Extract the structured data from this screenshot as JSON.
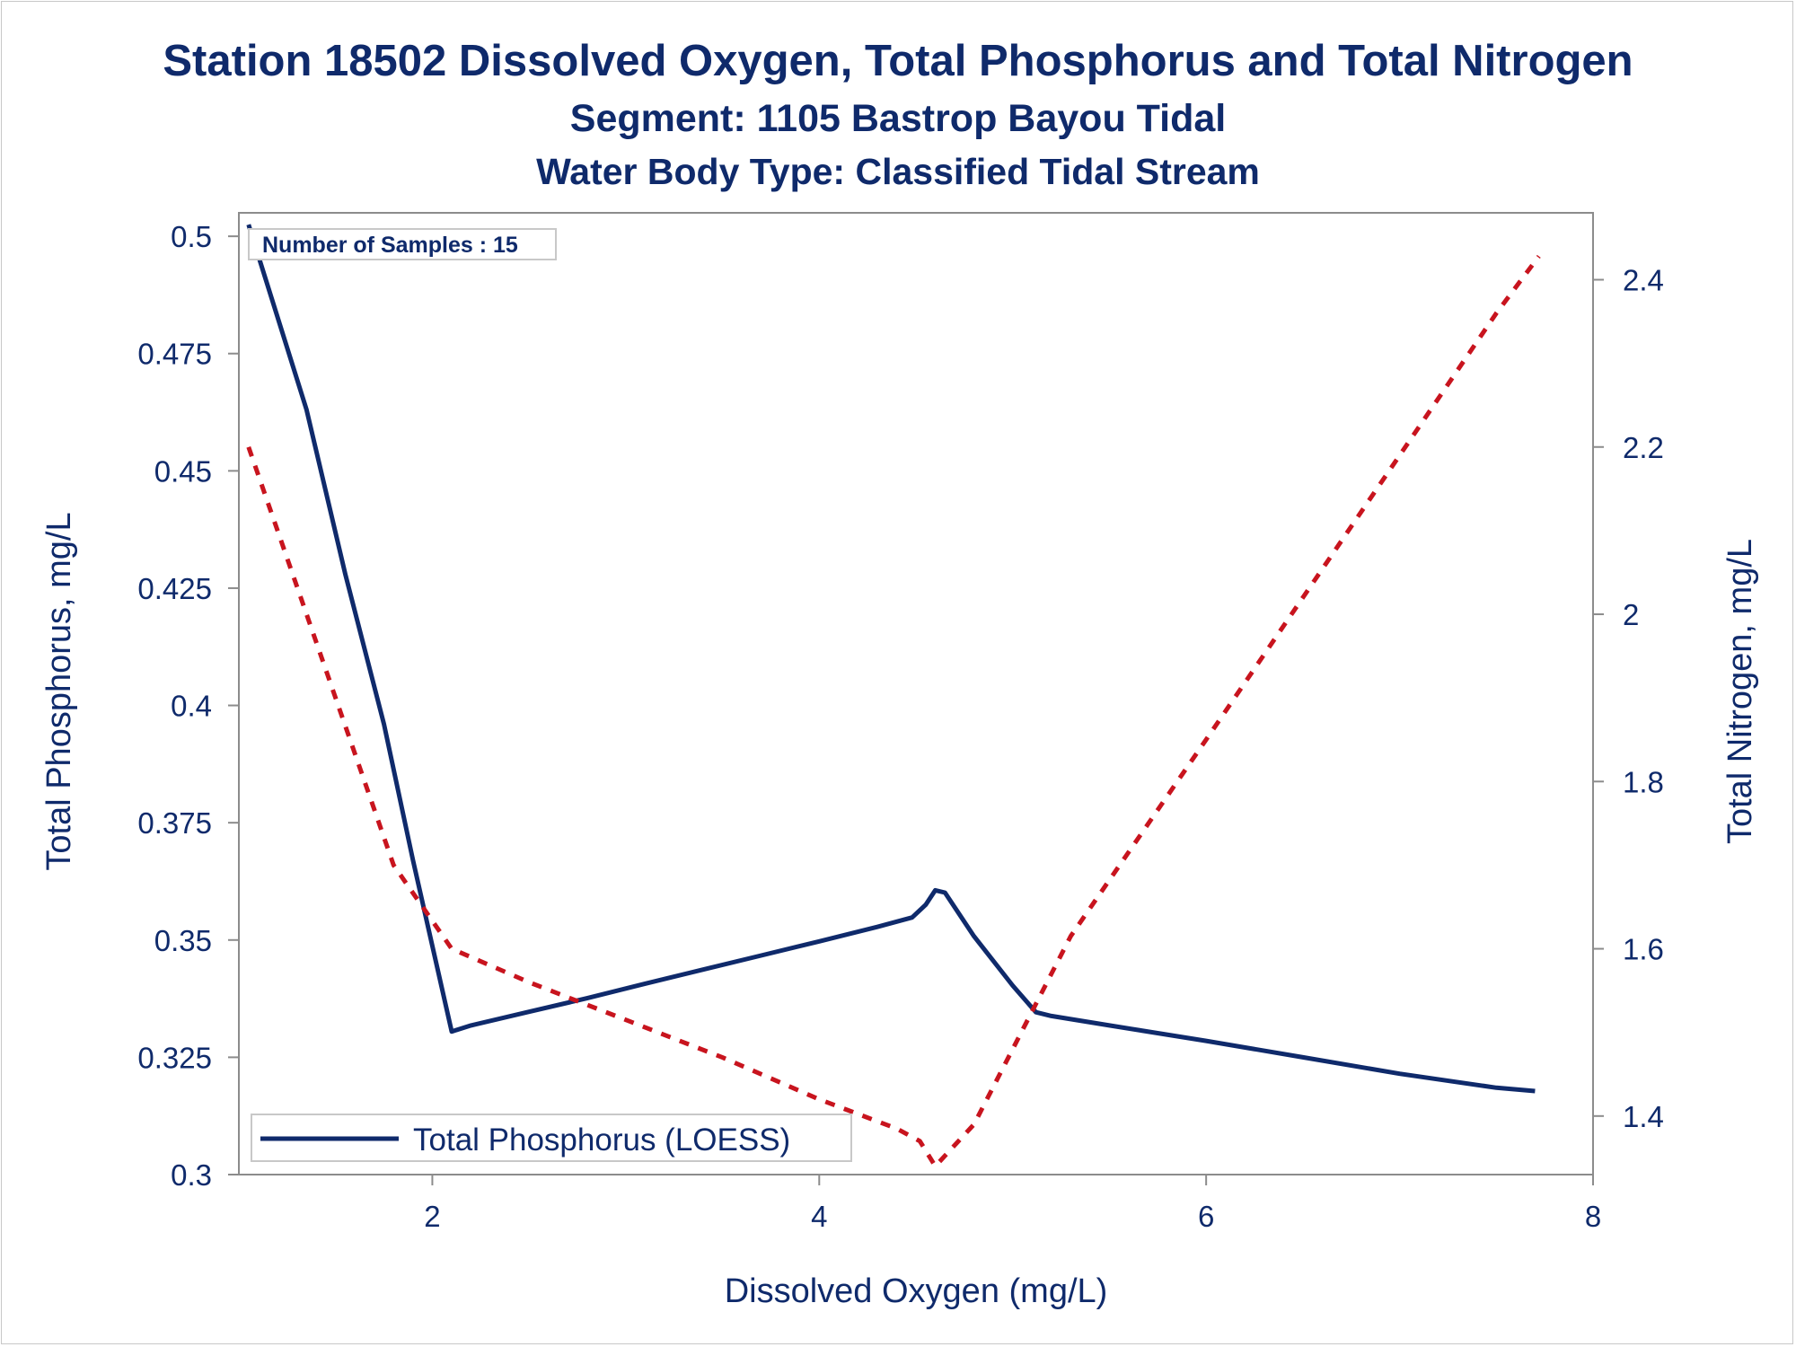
{
  "titles": {
    "title": "Station 18502  Dissolved Oxygen, Total Phosphorus and Total Nitrogen",
    "subtitle": "Segment: 1105  Bastrop Bayou Tidal",
    "subtitle2": "Water Body Type: Classified Tidal Stream"
  },
  "annotation": "Number of Samples : 15",
  "legend": {
    "entry": "Total Phosphorus (LOESS)"
  },
  "colors": {
    "text": "#0f2a6b",
    "phosphorus": "#0f2a6b",
    "nitrogen": "#c8141e",
    "axis": "#8c8c8c"
  },
  "chart_data": {
    "type": "line",
    "xlabel": "Dissolved Oxygen (mg/L)",
    "ylabel": "Total Phosphorus, mg/L",
    "y2label": "Total Nitrogen, mg/L",
    "xlim": [
      1,
      8
    ],
    "ylim": [
      0.3,
      0.505
    ],
    "y2lim": [
      1.33,
      2.48
    ],
    "xticks": [
      2,
      4,
      6,
      8
    ],
    "yticks": [
      0.3,
      0.325,
      0.35,
      0.375,
      0.4,
      0.425,
      0.45,
      0.475,
      0.5
    ],
    "y2ticks": [
      1.4,
      1.6,
      1.8,
      2,
      2.2,
      2.4
    ],
    "grid": false,
    "legend_position": "bottom-left",
    "series": [
      {
        "name": "Total Phosphorus (LOESS)",
        "axis": "left",
        "style": "solid",
        "points": [
          [
            1.05,
            0.5025
          ],
          [
            1.35,
            0.463
          ],
          [
            1.55,
            0.428
          ],
          [
            1.75,
            0.396
          ],
          [
            1.9,
            0.367
          ],
          [
            2.1,
            0.3305
          ],
          [
            2.2,
            0.3318
          ],
          [
            2.5,
            0.3347
          ],
          [
            2.8,
            0.3376
          ],
          [
            3.1,
            0.3407
          ],
          [
            3.4,
            0.3437
          ],
          [
            3.7,
            0.3467
          ],
          [
            4.0,
            0.3497
          ],
          [
            4.3,
            0.3528
          ],
          [
            4.48,
            0.3548
          ],
          [
            4.55,
            0.3575
          ],
          [
            4.6,
            0.3606
          ],
          [
            4.65,
            0.3601
          ],
          [
            4.8,
            0.3508
          ],
          [
            5.0,
            0.3403
          ],
          [
            5.12,
            0.3346
          ],
          [
            5.2,
            0.3338
          ],
          [
            5.5,
            0.3318
          ],
          [
            6.0,
            0.3285
          ],
          [
            6.5,
            0.325
          ],
          [
            7.0,
            0.3215
          ],
          [
            7.5,
            0.3185
          ],
          [
            7.7,
            0.3178
          ]
        ]
      },
      {
        "name": "",
        "axis": "right",
        "style": "dashed",
        "points": [
          [
            1.05,
            2.2
          ],
          [
            1.5,
            1.9
          ],
          [
            1.8,
            1.7
          ],
          [
            2.1,
            1.6
          ],
          [
            2.5,
            1.56
          ],
          [
            3.0,
            1.515
          ],
          [
            3.5,
            1.47
          ],
          [
            4.0,
            1.42
          ],
          [
            4.4,
            1.385
          ],
          [
            4.52,
            1.37
          ],
          [
            4.6,
            1.34
          ],
          [
            4.8,
            1.39
          ],
          [
            5.0,
            1.48
          ],
          [
            5.3,
            1.615
          ],
          [
            6.0,
            1.85
          ],
          [
            6.5,
            2.02
          ],
          [
            7.0,
            2.19
          ],
          [
            7.5,
            2.36
          ],
          [
            7.72,
            2.428
          ]
        ]
      }
    ]
  }
}
